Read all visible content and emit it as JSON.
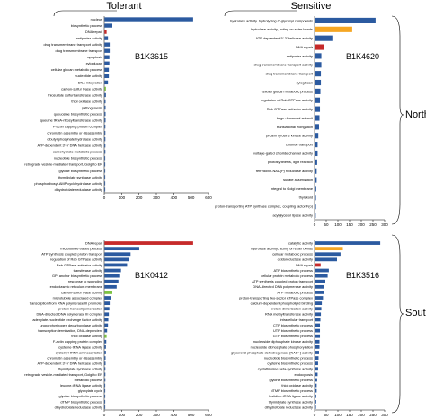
{
  "headers": {
    "left": "Tolerant",
    "right": "Sensitive"
  },
  "regions": {
    "top": "North",
    "bottom": "South"
  },
  "colors": {
    "blue": "#2b5aa0",
    "red": "#c62a2a",
    "orange": "#f5a623",
    "green": "#7cc242"
  },
  "chart_data": [
    {
      "type": "bar",
      "orientation": "horizontal",
      "panel": "B1K3615",
      "xlim": [
        0,
        600
      ],
      "xticks": [
        0,
        100,
        200,
        300,
        400,
        500,
        600
      ],
      "categories": [
        "nucleus",
        "biosynthetic process",
        "DNA repair",
        "antiporter activity",
        "drug transmembrane transport activity",
        "drug transmembrane transport",
        "apoptosis",
        "xyloglucan",
        "cellular glucan metabolic process",
        "nucleotide activity",
        "DNA integration",
        "carbon-sulfur lyase activity",
        "thiosulfate sulfurtransferase activity",
        "thiol oxidase activity",
        "pathogenesis",
        "queuosine biosynthetic process",
        "queuine tRNA-ribosyltransferase activity",
        "F-actin capping protein complex",
        "chromatin assembly or disassembly",
        "dibutyl-phosphate hydrolase activity",
        "ATP-dependent 3'-5' DNA helicase activity",
        "carbohydrate metabolic process",
        "nucleotide biosynthetic process",
        "retrograde vesicle-mediated transport, Golgi to ER",
        "glycine biosynthetic process",
        "thymidylate synthase activity",
        "phosphoribosyl-AMP cyclohydrolase activity",
        "dihydrofolate reductase activity"
      ],
      "values": [
        510,
        45,
        12,
        20,
        30,
        30,
        28,
        28,
        25,
        25,
        20,
        8,
        8,
        6,
        6,
        6,
        6,
        5,
        5,
        5,
        5,
        5,
        4,
        4,
        4,
        4,
        4,
        3
      ],
      "bar_colors": [
        "blue",
        "blue",
        "red",
        "blue",
        "blue",
        "blue",
        "blue",
        "blue",
        "blue",
        "blue",
        "blue",
        "green",
        "blue",
        "blue",
        "blue",
        "blue",
        "blue",
        "blue",
        "blue",
        "blue",
        "blue",
        "blue",
        "blue",
        "blue",
        "blue",
        "blue",
        "blue",
        "blue"
      ]
    },
    {
      "type": "bar",
      "orientation": "horizontal",
      "panel": "B1K4620",
      "xlim": [
        0,
        300
      ],
      "xticks": [
        0,
        50,
        100,
        150,
        200,
        250,
        300
      ],
      "categories": [
        "hydrolase activity, hydrolyzing O-glycosyl compounds",
        "hydrolase activity, acting on ester bonds",
        "ATP-dependent 5'-3' helicase activity",
        "DNA repair",
        "antiporter activity",
        "drug transmembrane transport activity",
        "drug transmembrane transport",
        "xyloglucan",
        "cellular glucan metabolic process",
        "regulation of Rab GTPase activity",
        "Rab GTPase activator activity",
        "large ribosomal subunit",
        "translational elongation",
        "protein tyrosine kinase activity",
        "chloride transport",
        "voltage-gated chloride channel activity",
        "photosynthesis, light reaction",
        "ferredoxin-NAD(P) reductase activity",
        "sulfate assimilation",
        "integral to Golgi membrane",
        "thylakoid",
        "proton-transporting ATP synthase complex, coupling factor F(o)",
        "acylglycerol lipase activity"
      ],
      "values": [
        260,
        160,
        75,
        40,
        28,
        28,
        26,
        26,
        24,
        22,
        22,
        20,
        18,
        15,
        12,
        12,
        10,
        8,
        8,
        6,
        5,
        5,
        4
      ],
      "bar_colors": [
        "blue",
        "orange",
        "blue",
        "red",
        "blue",
        "blue",
        "blue",
        "blue",
        "blue",
        "blue",
        "blue",
        "blue",
        "blue",
        "blue",
        "blue",
        "blue",
        "blue",
        "blue",
        "blue",
        "blue",
        "blue",
        "blue",
        "blue"
      ]
    },
    {
      "type": "bar",
      "orientation": "horizontal",
      "panel": "B1K0412",
      "xlim": [
        0,
        600
      ],
      "xticks": [
        0,
        100,
        200,
        300,
        400,
        500,
        600
      ],
      "categories": [
        "DNA repair",
        "microtubule-based process",
        "ATP synthesis coupled proton transport",
        "regulation of Rab GTPase activity",
        "Rab GTPase activator activity",
        "transferase activity",
        "GPI anchor biosynthetic process",
        "response to wounding",
        "endoplasmic reticulum membrane",
        "carbon-sulfur lyase activity",
        "microtubule associated complex",
        "transcription from RNA polymerase III promoter",
        "protein homooligomerization",
        "DNA-directed DNA polymerase III complex",
        "adenylate-nucleotide exchange factor activity",
        "uroporphyrinogen decarboxylase activity",
        "transcription termination, DNA-dependent",
        "thiol oxidase activity",
        "F-actin capping protein complex",
        "cysteine-tRNA ligase activity",
        "cysteinyl-tRNA aminoacylation",
        "chromatin assembly or disassembly",
        "ATP-dependent 3'-5' DNA helicase activity",
        "thymidylate synthase activity",
        "retrograde vesicle-mediated transport, Golgi to ER",
        "metabolic process",
        "leucine-tRNA ligase activity",
        "glyoxylate cycle",
        "glycine biosynthetic process",
        "dTMP biosynthetic process",
        "dihydrofolate reductase activity"
      ],
      "values": [
        510,
        200,
        150,
        140,
        130,
        95,
        85,
        80,
        70,
        45,
        35,
        30,
        28,
        25,
        22,
        20,
        15,
        12,
        10,
        8,
        8,
        6,
        6,
        5,
        5,
        5,
        4,
        4,
        4,
        4,
        3
      ],
      "bar_colors": [
        "red",
        "blue",
        "blue",
        "blue",
        "blue",
        "blue",
        "blue",
        "blue",
        "blue",
        "green",
        "blue",
        "blue",
        "blue",
        "blue",
        "blue",
        "blue",
        "blue",
        "green",
        "blue",
        "blue",
        "blue",
        "blue",
        "blue",
        "blue",
        "blue",
        "blue",
        "blue",
        "blue",
        "blue",
        "blue",
        "blue"
      ]
    },
    {
      "type": "bar",
      "orientation": "horizontal",
      "panel": "B1K3516",
      "xlim": [
        0,
        300
      ],
      "xticks": [
        0,
        50,
        100,
        150,
        200,
        250,
        300
      ],
      "categories": [
        "catalytic activity",
        "hydrolase activity, acting on ester bonds",
        "cellular metabolic process",
        "oxidoreductase activity",
        "DNA repair",
        "ATP biosynthetic process",
        "cellular protein metabolic process",
        "ATP synthesis coupled proton transport",
        "DNA-directed DNA polymerase activity",
        "ATP metabolic process",
        "proton-transporting two-sector ATPase complex",
        "calcium-dependent phospholipid binding",
        "protein dimerization activity",
        "RNA methyltransferase activity",
        "intracellular transport",
        "CTP biosynthetic process",
        "UTP biosynthetic process",
        "GTP biosynthetic process",
        "nucleoside diphosphate kinase activity",
        "nucleoside diphosphate phosphorylation",
        "glycerol-3-phosphate dehydrogenase [NAD+] activity",
        "nucleotide biosynthetic process",
        "cysteine biosynthetic process",
        "cystathionine beta-synthase activity",
        "endocytosis",
        "glycine biosynthetic process",
        "thiol oxidase activity",
        "dTMP biosynthetic process",
        "histidine-tRNA ligase activity",
        "thymidylate synthase activity",
        "dihydrofolate reductase activity"
      ],
      "values": [
        280,
        120,
        110,
        95,
        25,
        60,
        55,
        45,
        40,
        38,
        35,
        30,
        28,
        26,
        24,
        22,
        22,
        22,
        20,
        20,
        18,
        16,
        14,
        14,
        12,
        10,
        8,
        8,
        6,
        6,
        5
      ],
      "bar_colors": [
        "blue",
        "orange",
        "blue",
        "blue",
        "red",
        "blue",
        "blue",
        "blue",
        "blue",
        "blue",
        "blue",
        "blue",
        "blue",
        "blue",
        "blue",
        "blue",
        "blue",
        "blue",
        "blue",
        "blue",
        "blue",
        "blue",
        "blue",
        "blue",
        "blue",
        "blue",
        "blue",
        "blue",
        "blue",
        "blue",
        "blue"
      ]
    }
  ]
}
